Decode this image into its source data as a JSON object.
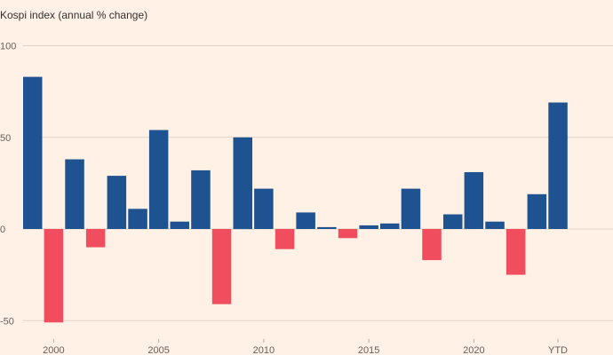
{
  "chart_data": {
    "type": "bar",
    "title": "Kospi index (annual % change)",
    "xlabel": "",
    "ylabel": "",
    "ylim": [
      -55,
      105
    ],
    "yticks": [
      100,
      50,
      0,
      -50
    ],
    "grid": true,
    "categories": [
      "1999",
      "2000",
      "2001",
      "2002",
      "2003",
      "2004",
      "2005",
      "2006",
      "2007",
      "2008",
      "2009",
      "2010",
      "2011",
      "2012",
      "2013",
      "2014",
      "2015",
      "2016",
      "2017",
      "2018",
      "2019",
      "2020",
      "2021",
      "2022",
      "2023",
      "YTD"
    ],
    "values": [
      83,
      -51,
      38,
      -10,
      29,
      11,
      54,
      4,
      32,
      -41,
      50,
      22,
      -11,
      9,
      1,
      -5,
      2,
      3,
      22,
      -17,
      8,
      31,
      4,
      -25,
      19,
      69
    ],
    "xtick_labels": [
      {
        "category": "2000",
        "label": "2000"
      },
      {
        "category": "2005",
        "label": "2005"
      },
      {
        "category": "2010",
        "label": "2010"
      },
      {
        "category": "2015",
        "label": "2015"
      },
      {
        "category": "2020",
        "label": "2020"
      },
      {
        "category": "YTD",
        "label": "YTD"
      }
    ],
    "colors": {
      "positive": "#1F5290",
      "negative": "#F04E5E",
      "grid": "#E0D3C8",
      "background": "#FFF1E5"
    }
  }
}
